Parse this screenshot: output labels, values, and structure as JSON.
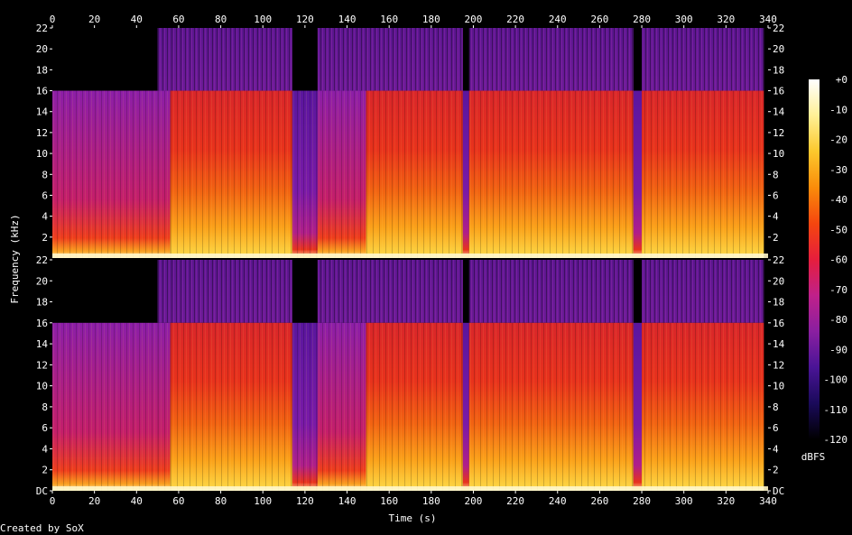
{
  "chart_data": {
    "type": "heatmap",
    "subtype": "spectrogram",
    "xlabel": "Time (s)",
    "ylabel": "Frequency (kHz)",
    "x_ticks": [
      0,
      20,
      40,
      60,
      80,
      100,
      120,
      140,
      160,
      180,
      200,
      220,
      240,
      260,
      280,
      300,
      320,
      340
    ],
    "xlim": [
      0,
      340
    ],
    "y_ticks_top": [
      "2",
      "4",
      "6",
      "8",
      "10",
      "12",
      "14",
      "16",
      "18",
      "20",
      "22"
    ],
    "y_ticks_bottom": [
      "DC",
      "2",
      "4",
      "6",
      "8",
      "10",
      "12",
      "14",
      "16",
      "18",
      "20",
      "22"
    ],
    "ylim_khz": [
      0,
      22
    ],
    "channels": 2,
    "colorbar": {
      "label": "dBFS",
      "ticks": [
        "+0",
        "-10",
        "-20",
        "-30",
        "-40",
        "-50",
        "-60",
        "-70",
        "-80",
        "-90",
        "-100",
        "-110",
        "-120"
      ],
      "range": [
        -120,
        0
      ],
      "stops": [
        "#000000",
        "#1a0a5a",
        "#4a1496",
        "#8a1fa0",
        "#c0208a",
        "#e61e3c",
        "#f5460f",
        "#fa8c0a",
        "#fcc82d",
        "#fff096",
        "#ffffff"
      ]
    },
    "segments_s": [
      {
        "start": 0,
        "end": 50,
        "level": "moderate",
        "cutoff_khz": 16
      },
      {
        "start": 50,
        "end": 56,
        "level": "moderate",
        "cutoff_khz": 16
      },
      {
        "start": 56,
        "end": 114,
        "level": "loud",
        "cutoff_khz": 16
      },
      {
        "start": 114,
        "end": 126,
        "level": "quiet",
        "cutoff_khz": 16
      },
      {
        "start": 126,
        "end": 149,
        "level": "moderate",
        "cutoff_khz": 16
      },
      {
        "start": 149,
        "end": 195,
        "level": "loud",
        "cutoff_khz": 16
      },
      {
        "start": 195,
        "end": 198,
        "level": "dip",
        "cutoff_khz": 16
      },
      {
        "start": 198,
        "end": 276,
        "level": "loud",
        "cutoff_khz": 16
      },
      {
        "start": 276,
        "end": 280,
        "level": "dip",
        "cutoff_khz": 16
      },
      {
        "start": 280,
        "end": 338,
        "level": "loud",
        "cutoff_khz": 16
      }
    ]
  },
  "footer": {
    "credit": "Created by SoX"
  }
}
